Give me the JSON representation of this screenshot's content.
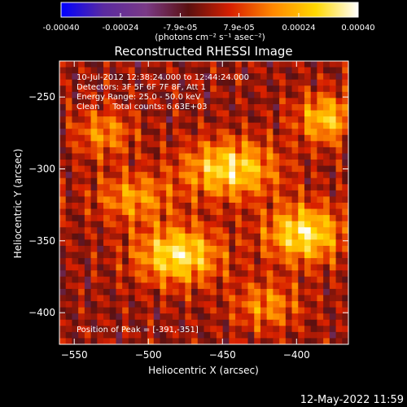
{
  "chart_data": {
    "type": "heatmap",
    "title": "Reconstructed RHESSI Image",
    "xlabel": "Heliocentric X (arcsec)",
    "ylabel": "Heliocentric Y (arcsec)",
    "xlim": [
      -560,
      -365
    ],
    "ylim": [
      -422,
      -225
    ],
    "x_ticks": [
      -550,
      -500,
      -450,
      -400
    ],
    "y_ticks": [
      -250,
      -300,
      -350,
      -400
    ],
    "colorbar": {
      "min": -0.0004,
      "max": 0.0004,
      "ticks": [
        -0.0004,
        -0.00024,
        -7.9e-05,
        7.9e-05,
        0.00024,
        0.0004
      ],
      "tick_labels": [
        "-0.00040",
        "-0.00024",
        "-7.9e-05",
        "7.9e-05",
        "0.00024",
        "0.00040"
      ],
      "unit_label": "(photons cm⁻² s⁻¹ asec⁻²)",
      "colors": [
        "#0000ff",
        "#5a2aa0",
        "#7a3a86",
        "#5a1010",
        "#d82000",
        "#ff8800",
        "#ffd800",
        "#ffffff"
      ]
    },
    "annotations": [
      "10-Jul-2012 12:38:24.000 to 12:44:24.000",
      "Detectors: 3F 5F 6F 7F 8F, Att 1",
      "Energy Range: 25.0 - 50.0 keV",
      "Clean     Total counts: 6.63E+03"
    ],
    "peak_label": "Position of Peak = [-391,-351]",
    "peak": {
      "x": -391,
      "y": -351
    },
    "sources": [
      {
        "x": -480,
        "y": -360,
        "amp": 1.0,
        "sx": 20,
        "sy": 14
      },
      {
        "x": -445,
        "y": -300,
        "amp": 0.95,
        "sx": 22,
        "sy": 14
      },
      {
        "x": -395,
        "y": -345,
        "amp": 1.0,
        "sx": 18,
        "sy": 14
      },
      {
        "x": -380,
        "y": -265,
        "amp": 0.8,
        "sx": 14,
        "sy": 12
      },
      {
        "x": -530,
        "y": -275,
        "amp": 0.55,
        "sx": 14,
        "sy": 12
      },
      {
        "x": -510,
        "y": -320,
        "amp": 0.6,
        "sx": 18,
        "sy": 12
      },
      {
        "x": -420,
        "y": -395,
        "amp": 0.55,
        "sx": 16,
        "sy": 12
      }
    ]
  },
  "footer": {
    "timestamp": "12-May-2022 11:59"
  }
}
